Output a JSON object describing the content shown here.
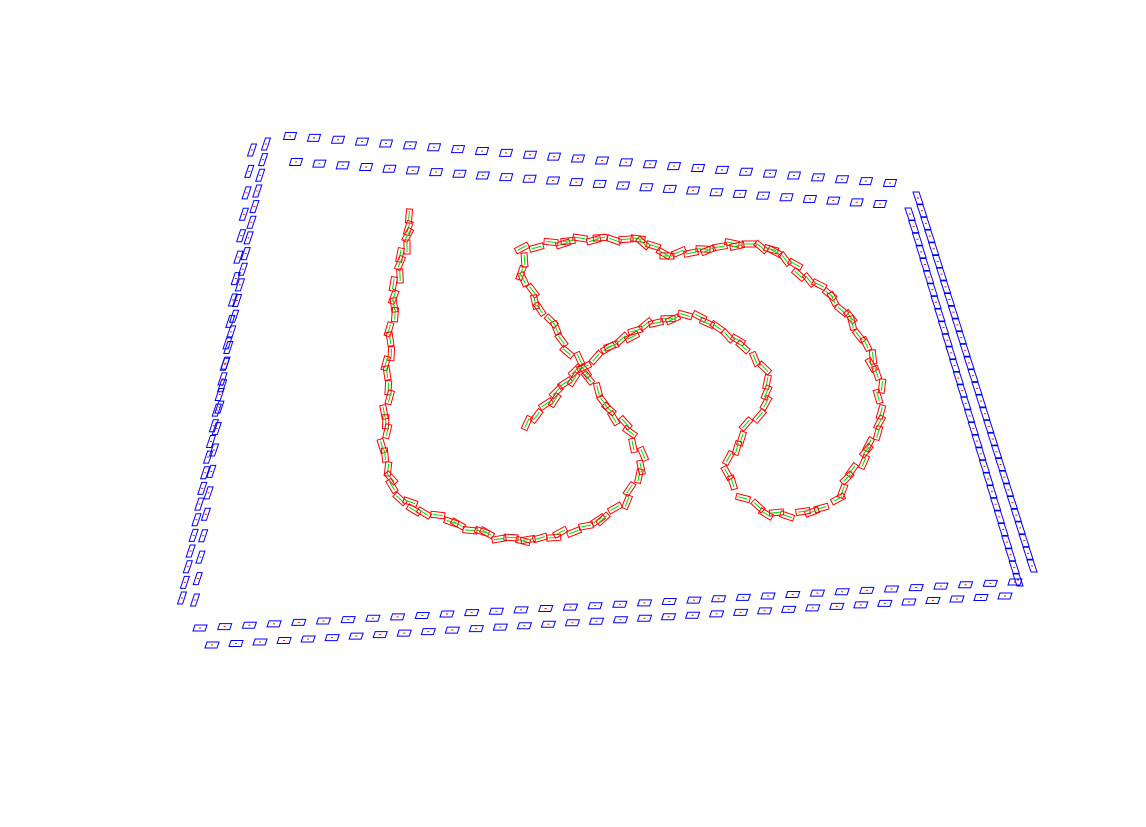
{
  "scene": {
    "boundary_stroke": "#0000ff",
    "boundary_accent": "#ff0000",
    "cone_stroke": "#ff0000",
    "cone_accent": "#00dd00"
  }
}
